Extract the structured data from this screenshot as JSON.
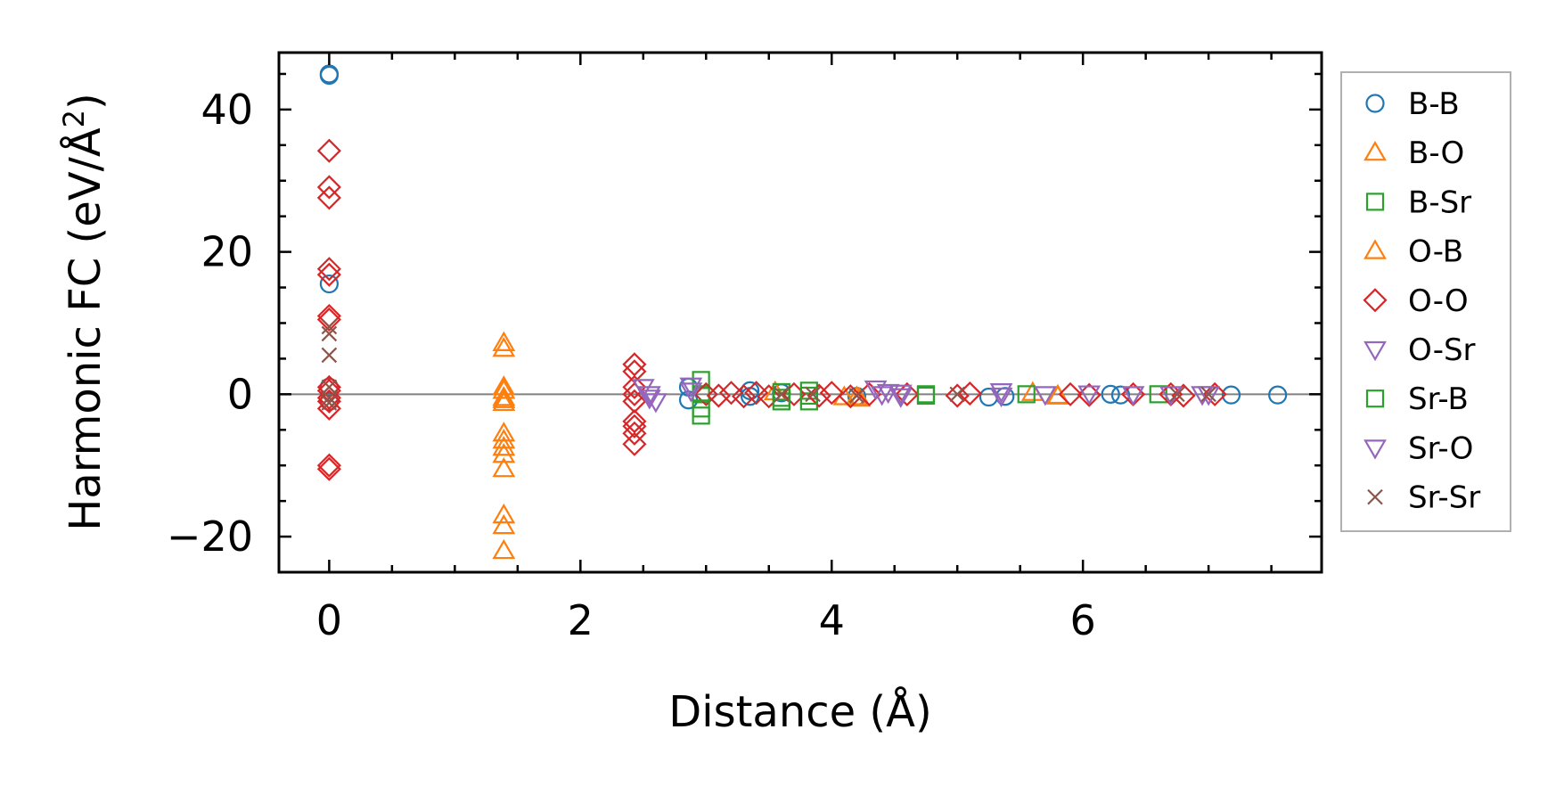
{
  "chart_data": {
    "type": "scatter",
    "title": "",
    "xlabel": "Distance (Å)",
    "ylabel_main": "Harmonic FC (eV/Å",
    "ylabel_sup": "2",
    "ylabel_close": ")",
    "xlim": [
      -0.4,
      7.9
    ],
    "ylim": [
      -25,
      48
    ],
    "xticks": [
      0,
      2,
      4,
      6
    ],
    "yticks": [
      -20,
      0,
      20,
      40
    ],
    "xtick_labels": [
      "0",
      "2",
      "4",
      "6"
    ],
    "ytick_labels": [
      "−20",
      "0",
      "20",
      "40"
    ],
    "zero_line": true,
    "grid": false,
    "legend_position": "outside-right",
    "series": [
      {
        "name": "B-B",
        "marker": "circle",
        "color": "#1f77b4",
        "points": [
          [
            0,
            45
          ],
          [
            0,
            44.8
          ],
          [
            0,
            15.5
          ],
          [
            0,
            1.0
          ],
          [
            0,
            -1.0
          ],
          [
            2.86,
            1.0
          ],
          [
            2.86,
            -0.8
          ],
          [
            3.35,
            0.5
          ],
          [
            3.35,
            -0.3
          ],
          [
            3.6,
            0.2
          ],
          [
            4.2,
            -0.3
          ],
          [
            5.25,
            -0.4
          ],
          [
            5.38,
            -0.3
          ],
          [
            6.22,
            0.0
          ],
          [
            6.3,
            -0.1
          ],
          [
            7.18,
            -0.1
          ],
          [
            7.55,
            -0.1
          ]
        ]
      },
      {
        "name": "B-O",
        "marker": "triangle-up",
        "color": "#ff7f0e",
        "points": [
          [
            1.39,
            7.2
          ],
          [
            1.39,
            6.4
          ],
          [
            1.39,
            1.0
          ],
          [
            1.39,
            -0.5
          ],
          [
            1.39,
            -1.2
          ],
          [
            1.39,
            -5.5
          ],
          [
            1.39,
            -6.5
          ],
          [
            1.39,
            -7.5
          ],
          [
            1.39,
            -8.5
          ],
          [
            1.39,
            -10.5
          ],
          [
            1.39,
            -17.0
          ],
          [
            1.39,
            -18.5
          ],
          [
            1.39,
            -22.0
          ],
          [
            3.55,
            0.3
          ],
          [
            4.2,
            -0.4
          ],
          [
            5.6,
            0.2
          ],
          [
            5.8,
            -0.2
          ]
        ]
      },
      {
        "name": "B-Sr",
        "marker": "square",
        "color": "#2ca02c",
        "points": [
          [
            2.96,
            2.0
          ],
          [
            2.96,
            0.0
          ],
          [
            2.96,
            -3.0
          ],
          [
            3.6,
            0.3
          ],
          [
            3.6,
            -1.0
          ],
          [
            3.82,
            0.5
          ],
          [
            3.82,
            -1.0
          ],
          [
            4.75,
            -0.2
          ],
          [
            5.55,
            0.0
          ],
          [
            6.6,
            0.0
          ]
        ]
      },
      {
        "name": "O-B",
        "marker": "triangle-up",
        "color": "#ff7f0e",
        "points": [
          [
            1.39,
            0.5
          ],
          [
            1.39,
            -0.8
          ],
          [
            4.1,
            -0.4
          ],
          [
            4.22,
            -0.6
          ],
          [
            5.8,
            -0.3
          ]
        ]
      },
      {
        "name": "O-O",
        "marker": "diamond",
        "color": "#d62728",
        "points": [
          [
            0,
            34.2
          ],
          [
            0,
            29.1
          ],
          [
            0,
            27.6
          ],
          [
            0,
            17.6
          ],
          [
            0,
            16.8
          ],
          [
            0,
            11.0
          ],
          [
            0,
            10.5
          ],
          [
            0,
            1.0
          ],
          [
            0,
            0.5
          ],
          [
            0,
            -0.5
          ],
          [
            0,
            -1.0
          ],
          [
            0,
            -2.0
          ],
          [
            0,
            -10.0
          ],
          [
            0,
            -10.5
          ],
          [
            2.43,
            4.2
          ],
          [
            2.43,
            3.2
          ],
          [
            2.43,
            1.0
          ],
          [
            2.43,
            0.0
          ],
          [
            2.43,
            -1.0
          ],
          [
            2.43,
            -3.8
          ],
          [
            2.43,
            -4.5
          ],
          [
            2.43,
            -5.5
          ],
          [
            2.43,
            -7.0
          ],
          [
            3.0,
            0.0
          ],
          [
            3.1,
            -0.2
          ],
          [
            3.2,
            0.2
          ],
          [
            3.3,
            -0.3
          ],
          [
            3.4,
            0.2
          ],
          [
            3.5,
            -0.3
          ],
          [
            3.7,
            0.0
          ],
          [
            3.9,
            -0.2
          ],
          [
            4.0,
            0.2
          ],
          [
            4.15,
            -0.3
          ],
          [
            4.3,
            0.0
          ],
          [
            4.6,
            0.0
          ],
          [
            5.0,
            -0.2
          ],
          [
            5.1,
            0.1
          ],
          [
            5.9,
            0.0
          ],
          [
            6.05,
            -0.1
          ],
          [
            6.4,
            0.0
          ],
          [
            6.7,
            0.0
          ],
          [
            6.8,
            -0.2
          ],
          [
            7.05,
            0.0
          ]
        ]
      },
      {
        "name": "O-Sr",
        "marker": "triangle-down",
        "color": "#9467bd",
        "points": [
          [
            2.5,
            1.0
          ],
          [
            2.55,
            0.0
          ],
          [
            2.6,
            -1.0
          ],
          [
            2.88,
            1.2
          ],
          [
            4.35,
            0.8
          ],
          [
            4.45,
            0.3
          ],
          [
            4.55,
            -0.3
          ],
          [
            5.35,
            0.4
          ],
          [
            5.7,
            0.0
          ],
          [
            6.05,
            0.1
          ],
          [
            6.7,
            0.0
          ],
          [
            7.0,
            0.0
          ]
        ]
      },
      {
        "name": "Sr-B",
        "marker": "square",
        "color": "#2ca02c",
        "points": [
          [
            2.96,
            -2.0
          ],
          [
            3.6,
            -0.5
          ],
          [
            3.82,
            -0.2
          ],
          [
            4.75,
            0.0
          ]
        ]
      },
      {
        "name": "Sr-O",
        "marker": "triangle-down",
        "color": "#9467bd",
        "points": [
          [
            2.55,
            -0.5
          ],
          [
            2.88,
            0.5
          ],
          [
            4.4,
            0.0
          ],
          [
            4.55,
            0.2
          ],
          [
            5.35,
            -0.2
          ],
          [
            6.4,
            0.0
          ],
          [
            6.95,
            0.0
          ]
        ]
      },
      {
        "name": "Sr-Sr",
        "marker": "x",
        "color": "#8c564b",
        "points": [
          [
            0,
            9.5
          ],
          [
            0,
            8.5
          ],
          [
            0,
            5.5
          ],
          [
            0,
            1.0
          ],
          [
            0,
            -0.5
          ],
          [
            0,
            -1.2
          ],
          [
            3.6,
            0.0
          ],
          [
            3.85,
            0.0
          ],
          [
            4.2,
            -0.2
          ],
          [
            5.0,
            0.0
          ],
          [
            6.75,
            0.0
          ],
          [
            7.0,
            0.0
          ]
        ]
      }
    ],
    "legend_order": [
      "B-B",
      "B-O",
      "B-Sr",
      "O-B",
      "O-O",
      "O-Sr",
      "Sr-B",
      "Sr-O",
      "Sr-Sr"
    ]
  }
}
